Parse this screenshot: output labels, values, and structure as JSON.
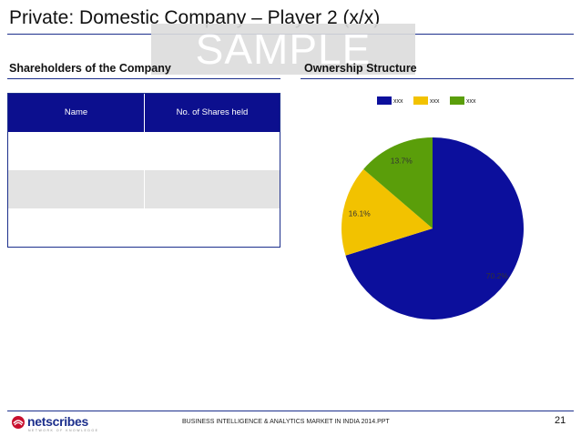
{
  "slide": {
    "title": "Private: Domestic Company – Player 2 (x/x)",
    "watermark": "SAMPLE"
  },
  "left_section": {
    "heading": "Shareholders of the Company",
    "table": {
      "columns": [
        "Name",
        "No. of Shares held"
      ],
      "rows": [
        [
          "",
          ""
        ],
        [
          "",
          ""
        ],
        [
          "",
          ""
        ]
      ]
    }
  },
  "right_section": {
    "heading": "Ownership Structure"
  },
  "chart_data": {
    "type": "pie",
    "categories": [
      "xxx",
      "xxx",
      "xxx"
    ],
    "values": [
      70.2,
      16.1,
      13.7
    ],
    "labels": [
      "70.2%",
      "16.1%",
      "13.7%"
    ],
    "colors": [
      "#0c0f9c",
      "#f2c200",
      "#5a9e0a"
    ],
    "legend_position": "top"
  },
  "footer": {
    "logo_text": "netscribes",
    "logo_tagline": "NETWORK OF KNOWLEDGE",
    "document": "BUSINESS INTELLIGENCE & ANALYTICS MARKET IN INDIA 2014.PPT",
    "page_number": "21"
  },
  "colors": {
    "accent_navy": "#1c2f8c",
    "header_fill": "#0c0f8e",
    "alt_row": "#e3e3e3"
  }
}
